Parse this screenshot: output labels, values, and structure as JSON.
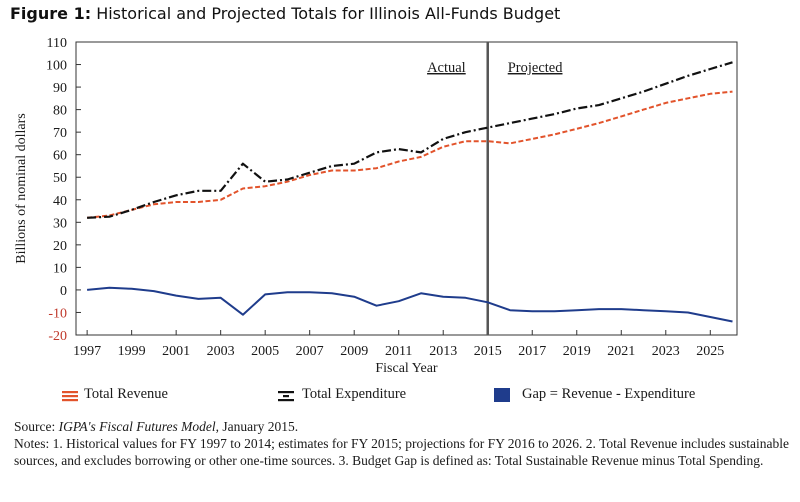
{
  "figure": {
    "label": "Figure 1:",
    "title": "Historical and Projected Totals for Illinois All-Funds Budget"
  },
  "source_note": {
    "source_prefix": "Source: ",
    "source_italic": "IGPA's Fiscal Futures Model",
    "source_suffix": ", January 2015.",
    "notes": "Notes: 1. Historical values for FY 1997 to 2014; estimates for FY 2015; projections for FY 2016 to 2026. 2. Total Revenue includes sustainable sources, and excludes borrowing or other one-time sources. 3. Budget Gap is defined as: Total Sustainable Revenue minus Total Spending."
  },
  "chart_data": {
    "type": "line",
    "title": "Historical and Projected Totals for Illinois All-Funds Budget",
    "xlabel": "Fiscal Year",
    "ylabel": "Billions of nominal dollars",
    "xlim": [
      1996.5,
      2026.2
    ],
    "ylim": [
      -20,
      110
    ],
    "x_ticks": [
      1997,
      1999,
      2001,
      2003,
      2005,
      2007,
      2009,
      2011,
      2013,
      2015,
      2017,
      2019,
      2021,
      2023,
      2025
    ],
    "y_ticks": [
      -20,
      -10,
      0,
      10,
      20,
      30,
      40,
      50,
      60,
      70,
      80,
      90,
      100,
      110
    ],
    "divider_year": 2015,
    "region_labels": {
      "actual": "Actual",
      "projected": "Projected"
    },
    "grid": false,
    "legend_position": "bottom",
    "x": [
      1997,
      1998,
      1999,
      2000,
      2001,
      2002,
      2003,
      2004,
      2005,
      2006,
      2007,
      2008,
      2009,
      2010,
      2011,
      2012,
      2013,
      2014,
      2015,
      2016,
      2017,
      2018,
      2019,
      2020,
      2021,
      2022,
      2023,
      2024,
      2025,
      2026
    ],
    "series": [
      {
        "name": "Total Revenue",
        "color": "#e2532b",
        "style": "dashed",
        "values": [
          32,
          33,
          35.5,
          38,
          39,
          39,
          40,
          45,
          46,
          48,
          51,
          53,
          53,
          54,
          57,
          59,
          63.5,
          66,
          66,
          65,
          67,
          69,
          71.5,
          74,
          77,
          80,
          83,
          85,
          87,
          88
        ]
      },
      {
        "name": "Total Expenditure",
        "color": "#111111",
        "style": "dashdot",
        "values": [
          32,
          32.5,
          35.5,
          39,
          42,
          44,
          44,
          56,
          48,
          49,
          52,
          55,
          56,
          61,
          62.5,
          61,
          67,
          70,
          72,
          74,
          76,
          78,
          80.5,
          82,
          85,
          88,
          91.5,
          95,
          98,
          101
        ]
      },
      {
        "name": "Gap = Revenue - Expenditure",
        "color": "#1f3c8c",
        "style": "solid",
        "values": [
          0,
          1,
          0.5,
          -0.5,
          -2.5,
          -4,
          -3.5,
          -11,
          -2,
          -1,
          -1,
          -1.5,
          -3,
          -7,
          -5,
          -1.5,
          -3,
          -3.5,
          -5.5,
          -9,
          -9.5,
          -9.5,
          -9,
          -8.5,
          -8.5,
          -9,
          -9.5,
          -10,
          -12,
          -14
        ]
      }
    ]
  }
}
